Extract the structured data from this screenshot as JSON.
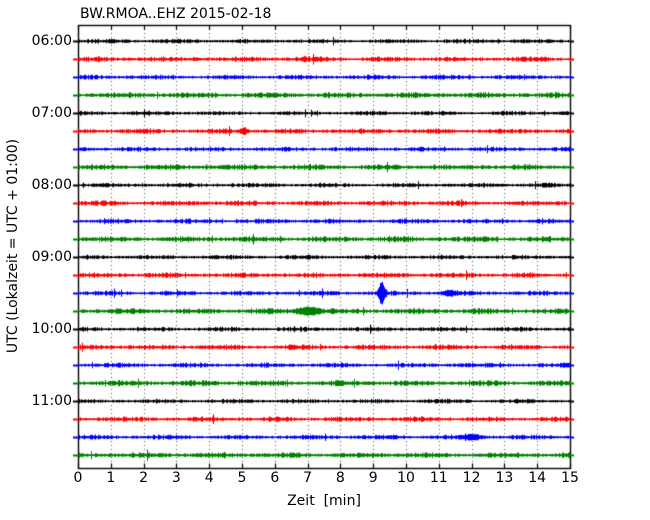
{
  "chart_data": {
    "type": "line",
    "subtype": "seismogram-dayplot-helicorder",
    "title": "BW.RMOA..EHZ 2015-02-18",
    "xlabel": "Zeit  [min]",
    "ylabel": "UTC (Lokalzeit = UTC + 01:00)",
    "xlim": [
      0,
      15
    ],
    "minutes_per_row": 15,
    "x_ticks": [
      "0",
      "1",
      "2",
      "3",
      "4",
      "5",
      "6",
      "7",
      "8",
      "9",
      "10",
      "11",
      "12",
      "13",
      "14",
      "15"
    ],
    "grid": "vertical dotted line at every minute",
    "legend": "none",
    "axis_color": "#000000",
    "grid_color": "#555555",
    "trace_color_cycle": [
      "#000000",
      "#ff0000",
      "#0000ff",
      "#008000"
    ],
    "hour_tick_labels": [
      {
        "row": 0,
        "label": "06:00"
      },
      {
        "row": 4,
        "label": "07:00"
      },
      {
        "row": 8,
        "label": "08:00"
      },
      {
        "row": 12,
        "label": "09:00"
      },
      {
        "row": 16,
        "label": "10:00"
      },
      {
        "row": 20,
        "label": "11:00"
      }
    ],
    "traces": [
      {
        "start": "06:00",
        "color": "#000000",
        "noise_amp": 1.3,
        "events": []
      },
      {
        "start": "06:15",
        "color": "#ff0000",
        "noise_amp": 1.5,
        "events": []
      },
      {
        "start": "06:30",
        "color": "#0000ff",
        "noise_amp": 1.4,
        "events": []
      },
      {
        "start": "06:45",
        "color": "#008000",
        "noise_amp": 1.7,
        "events": []
      },
      {
        "start": "07:00",
        "color": "#000000",
        "noise_amp": 1.3,
        "events": []
      },
      {
        "start": "07:15",
        "color": "#ff0000",
        "noise_amp": 1.5,
        "events": [
          {
            "min": 5.05,
            "amp": 3.0,
            "sigma_min": 0.06
          }
        ]
      },
      {
        "start": "07:30",
        "color": "#0000ff",
        "noise_amp": 1.4,
        "events": []
      },
      {
        "start": "07:45",
        "color": "#008000",
        "noise_amp": 1.7,
        "events": []
      },
      {
        "start": "08:00",
        "color": "#000000",
        "noise_amp": 1.3,
        "events": []
      },
      {
        "start": "08:15",
        "color": "#ff0000",
        "noise_amp": 1.5,
        "events": []
      },
      {
        "start": "08:30",
        "color": "#0000ff",
        "noise_amp": 1.4,
        "events": []
      },
      {
        "start": "08:45",
        "color": "#008000",
        "noise_amp": 1.7,
        "events": []
      },
      {
        "start": "09:00",
        "color": "#000000",
        "noise_amp": 1.3,
        "events": []
      },
      {
        "start": "09:15",
        "color": "#ff0000",
        "noise_amp": 1.5,
        "events": []
      },
      {
        "start": "09:30",
        "color": "#0000ff",
        "noise_amp": 1.4,
        "events": [
          {
            "min": 9.25,
            "amp": 9.5,
            "sigma_min": 0.07
          },
          {
            "min": 11.3,
            "amp": 2.0,
            "sigma_min": 0.15
          }
        ]
      },
      {
        "start": "09:45",
        "color": "#008000",
        "noise_amp": 1.7,
        "events": [
          {
            "min": 7.0,
            "amp": 3.2,
            "sigma_min": 0.25
          }
        ]
      },
      {
        "start": "10:00",
        "color": "#000000",
        "noise_amp": 1.3,
        "events": []
      },
      {
        "start": "10:15",
        "color": "#ff0000",
        "noise_amp": 1.5,
        "events": []
      },
      {
        "start": "10:30",
        "color": "#0000ff",
        "noise_amp": 1.4,
        "events": []
      },
      {
        "start": "10:45",
        "color": "#008000",
        "noise_amp": 1.7,
        "events": []
      },
      {
        "start": "11:00",
        "color": "#000000",
        "noise_amp": 1.3,
        "events": []
      },
      {
        "start": "11:15",
        "color": "#ff0000",
        "noise_amp": 1.5,
        "events": []
      },
      {
        "start": "11:30",
        "color": "#0000ff",
        "noise_amp": 1.4,
        "events": [
          {
            "min": 12.0,
            "amp": 2.0,
            "sigma_min": 0.2
          }
        ]
      },
      {
        "start": "11:45",
        "color": "#008000",
        "noise_amp": 1.7,
        "events": []
      }
    ]
  }
}
